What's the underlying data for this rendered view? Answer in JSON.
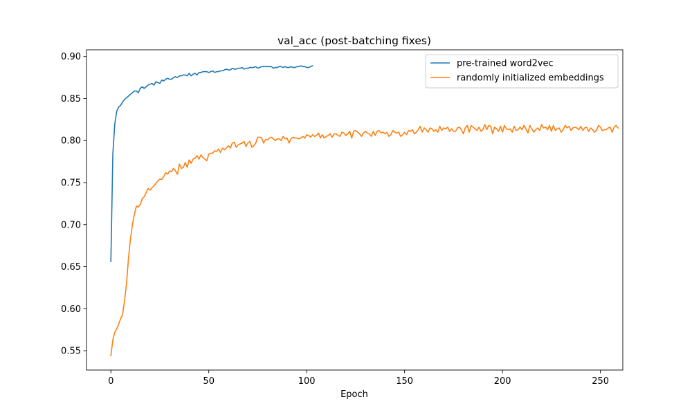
{
  "chart_data": {
    "type": "line",
    "title": "val_acc (post-batching fixes)",
    "xlabel": "Epoch",
    "ylabel": "",
    "xlim": [
      -12.45,
      261.45
    ],
    "ylim": [
      0.527,
      0.908
    ],
    "xticks": [
      0,
      50,
      100,
      150,
      200,
      250
    ],
    "yticks": [
      0.55,
      0.6,
      0.65,
      0.7,
      0.75,
      0.8,
      0.85,
      0.9
    ],
    "ytick_labels": [
      "0.55",
      "0.60",
      "0.65",
      "0.70",
      "0.75",
      "0.80",
      "0.85",
      "0.90"
    ],
    "xtick_labels": [
      "0",
      "50",
      "100",
      "150",
      "200",
      "250"
    ],
    "grid": false,
    "legend_position": "top-right",
    "series": [
      {
        "name": "pre-trained word2vec",
        "color": "#1f77b4",
        "x_start": 0,
        "values": [
          0.656,
          0.784,
          0.82,
          0.835,
          0.84,
          0.842,
          0.846,
          0.849,
          0.851,
          0.853,
          0.855,
          0.857,
          0.859,
          0.859,
          0.857,
          0.862,
          0.864,
          0.862,
          0.864,
          0.866,
          0.867,
          0.868,
          0.866,
          0.87,
          0.869,
          0.868,
          0.872,
          0.871,
          0.873,
          0.874,
          0.873,
          0.873,
          0.875,
          0.876,
          0.875,
          0.877,
          0.877,
          0.878,
          0.878,
          0.877,
          0.88,
          0.877,
          0.879,
          0.88,
          0.878,
          0.881,
          0.881,
          0.882,
          0.882,
          0.882,
          0.881,
          0.882,
          0.883,
          0.881,
          0.882,
          0.882,
          0.883,
          0.883,
          0.884,
          0.885,
          0.884,
          0.884,
          0.886,
          0.885,
          0.885,
          0.886,
          0.886,
          0.887,
          0.885,
          0.886,
          0.886,
          0.887,
          0.887,
          0.887,
          0.888,
          0.886,
          0.887,
          0.888,
          0.888,
          0.888,
          0.888,
          0.888,
          0.888,
          0.886,
          0.887,
          0.887,
          0.888,
          0.888,
          0.887,
          0.888,
          0.887,
          0.887,
          0.888,
          0.887,
          0.887,
          0.888,
          0.888,
          0.889,
          0.888,
          0.888,
          0.887,
          0.887,
          0.888,
          0.889
        ]
      },
      {
        "name": "randomly initialized embeddings",
        "color": "#ff7f0e",
        "x_start": 0,
        "values": [
          0.544,
          0.563,
          0.572,
          0.576,
          0.582,
          0.588,
          0.593,
          0.61,
          0.63,
          0.66,
          0.683,
          0.7,
          0.712,
          0.722,
          0.721,
          0.724,
          0.731,
          0.733,
          0.738,
          0.743,
          0.741,
          0.744,
          0.746,
          0.749,
          0.752,
          0.754,
          0.754,
          0.757,
          0.762,
          0.76,
          0.764,
          0.763,
          0.767,
          0.764,
          0.76,
          0.772,
          0.767,
          0.768,
          0.774,
          0.768,
          0.777,
          0.773,
          0.778,
          0.779,
          0.782,
          0.778,
          0.783,
          0.78,
          0.778,
          0.776,
          0.784,
          0.785,
          0.785,
          0.788,
          0.787,
          0.79,
          0.786,
          0.791,
          0.789,
          0.791,
          0.794,
          0.791,
          0.797,
          0.798,
          0.792,
          0.795,
          0.796,
          0.797,
          0.799,
          0.793,
          0.797,
          0.799,
          0.792,
          0.794,
          0.797,
          0.804,
          0.804,
          0.803,
          0.797,
          0.801,
          0.801,
          0.803,
          0.804,
          0.802,
          0.8,
          0.802,
          0.802,
          0.8,
          0.805,
          0.802,
          0.803,
          0.797,
          0.802,
          0.804,
          0.803,
          0.803,
          0.802,
          0.803,
          0.805,
          0.803,
          0.807,
          0.806,
          0.804,
          0.807,
          0.805,
          0.806,
          0.809,
          0.803,
          0.807,
          0.803,
          0.805,
          0.806,
          0.808,
          0.804,
          0.808,
          0.808,
          0.806,
          0.805,
          0.81,
          0.809,
          0.806,
          0.808,
          0.811,
          0.803,
          0.811,
          0.812,
          0.81,
          0.808,
          0.805,
          0.809,
          0.811,
          0.809,
          0.808,
          0.805,
          0.811,
          0.806,
          0.811,
          0.812,
          0.809,
          0.81,
          0.808,
          0.81,
          0.805,
          0.807,
          0.812,
          0.81,
          0.809,
          0.81,
          0.805,
          0.807,
          0.81,
          0.807,
          0.812,
          0.811,
          0.813,
          0.808,
          0.81,
          0.813,
          0.817,
          0.81,
          0.815,
          0.813,
          0.81,
          0.815,
          0.814,
          0.811,
          0.813,
          0.81,
          0.817,
          0.812,
          0.815,
          0.814,
          0.816,
          0.811,
          0.814,
          0.811,
          0.811,
          0.815,
          0.816,
          0.813,
          0.808,
          0.815,
          0.818,
          0.81,
          0.818,
          0.816,
          0.814,
          0.812,
          0.816,
          0.811,
          0.813,
          0.819,
          0.813,
          0.818,
          0.817,
          0.808,
          0.816,
          0.814,
          0.811,
          0.817,
          0.81,
          0.818,
          0.814,
          0.813,
          0.814,
          0.81,
          0.817,
          0.812,
          0.813,
          0.816,
          0.813,
          0.818,
          0.814,
          0.809,
          0.818,
          0.814,
          0.81,
          0.813,
          0.815,
          0.812,
          0.819,
          0.815,
          0.816,
          0.813,
          0.818,
          0.811,
          0.818,
          0.812,
          0.814,
          0.815,
          0.81,
          0.813,
          0.818,
          0.815,
          0.817,
          0.812,
          0.815,
          0.816,
          0.815,
          0.813,
          0.817,
          0.812,
          0.815,
          0.816,
          0.811,
          0.815,
          0.813,
          0.81,
          0.812,
          0.818,
          0.816,
          0.812,
          0.813,
          0.813,
          0.815,
          0.816,
          0.81,
          0.816,
          0.818,
          0.815
        ]
      }
    ]
  }
}
